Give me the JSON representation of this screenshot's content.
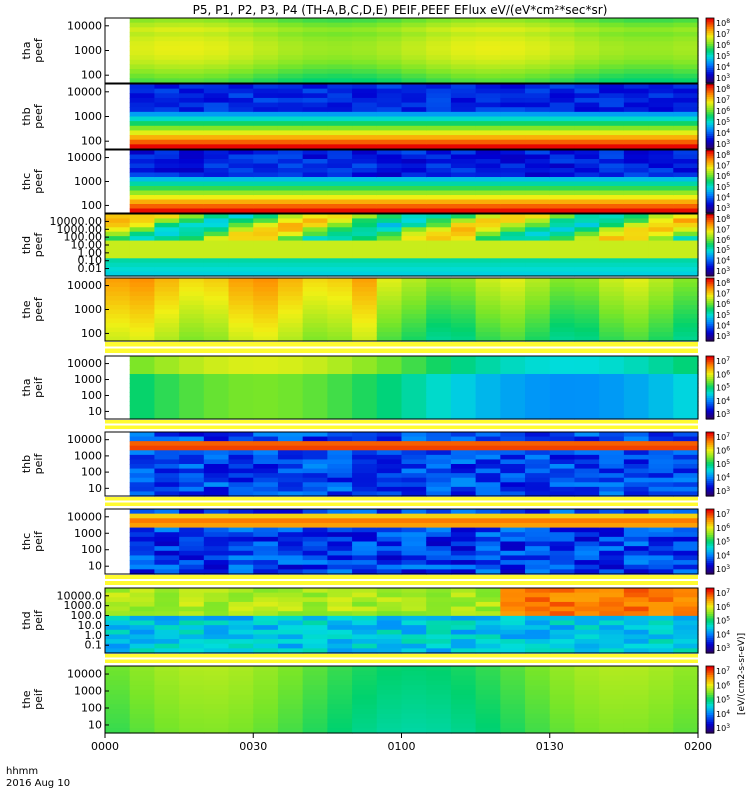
{
  "title": "P5, P1, P2, P3, P4 (TH-A,B,C,D,E) PEIF,PEEF EFlux eV/(eV*cm²*sec*sr)",
  "time_axis": {
    "row_label": "hhmm",
    "date_label": "2016 Aug 10",
    "tick_labels": [
      "0000",
      "0030",
      "0100",
      "0130",
      "0200"
    ]
  },
  "colorbar_unit": "[eV/(cm2-s-sr-eV)]",
  "chart_data": [
    {
      "type": "heatmap",
      "ylabel": "tha peef",
      "y_ticks": [
        "10000",
        "1000",
        "100"
      ],
      "colorbar_ticks": [
        "10^8",
        "10^7",
        "10^6",
        "10^5",
        "10^4",
        "10^3"
      ],
      "scheme": "tha_peef",
      "gap_end": 0.05
    },
    {
      "type": "heatmap",
      "ylabel": "thb peef",
      "y_ticks": [
        "10000",
        "1000",
        "100"
      ],
      "colorbar_ticks": [
        "10^8",
        "10^7",
        "10^6",
        "10^5",
        "10^4",
        "10^3"
      ],
      "scheme": "thb_peef",
      "gap_end": 0.05
    },
    {
      "type": "heatmap",
      "ylabel": "thc peef",
      "y_ticks": [
        "10000",
        "1000",
        "100"
      ],
      "colorbar_ticks": [
        "10^8",
        "10^7",
        "10^6",
        "10^5",
        "10^4",
        "10^3"
      ],
      "scheme": "thc_peef",
      "gap_end": 0.05
    },
    {
      "type": "heatmap",
      "ylabel": "thd peef",
      "y_ticks": [
        "10000.00",
        "1000.00",
        "100.00",
        "10.00",
        "1.00",
        "0.10",
        "0.01"
      ],
      "colorbar_ticks": [
        "10^8",
        "10^7",
        "10^6",
        "10^5",
        "10^4",
        "10^3"
      ],
      "scheme": "thd_peef",
      "gap_end": 0
    },
    {
      "type": "heatmap",
      "ylabel": "the peef",
      "y_ticks": [
        "10000",
        "1000",
        "100"
      ],
      "colorbar_ticks": [
        "10^8",
        "10^7",
        "10^6",
        "10^5",
        "10^4",
        "10^3"
      ],
      "scheme": "the_peef",
      "gap_end": 0
    },
    {
      "type": "heatmap",
      "ylabel": "tha peif",
      "y_ticks": [
        "10000",
        "1000",
        "100",
        "10"
      ],
      "colorbar_ticks": [
        "10^7",
        "10^6",
        "10^5",
        "10^4",
        "10^3"
      ],
      "scheme": "tha_peif",
      "gap_end": 0.05
    },
    {
      "type": "heatmap",
      "ylabel": "thb peif",
      "y_ticks": [
        "10000",
        "1000",
        "100",
        "10"
      ],
      "colorbar_ticks": [
        "10^7",
        "10^6",
        "10^5",
        "10^4",
        "10^3"
      ],
      "scheme": "thb_peif",
      "gap_end": 0.03
    },
    {
      "type": "heatmap",
      "ylabel": "thc peif",
      "y_ticks": [
        "10000",
        "1000",
        "100",
        "10"
      ],
      "colorbar_ticks": [
        "10^7",
        "10^6",
        "10^5",
        "10^4",
        "10^3"
      ],
      "scheme": "thc_peif",
      "gap_end": 0.05
    },
    {
      "type": "heatmap",
      "ylabel": "thd peif",
      "y_ticks": [
        "10000.0",
        "1000.0",
        "100.0",
        "10.0",
        "1.0",
        "0.1"
      ],
      "colorbar_ticks": [
        "10^7",
        "10^6",
        "10^5",
        "10^4",
        "10^3"
      ],
      "scheme": "thd_peif",
      "gap_end": 0
    },
    {
      "type": "heatmap",
      "ylabel": "the peif",
      "y_ticks": [
        "10000",
        "1000",
        "100",
        "10"
      ],
      "colorbar_ticks": [
        "10^7",
        "10^6",
        "10^5",
        "10^4",
        "10^3"
      ],
      "scheme": "the_peif",
      "gap_end": 0
    }
  ]
}
